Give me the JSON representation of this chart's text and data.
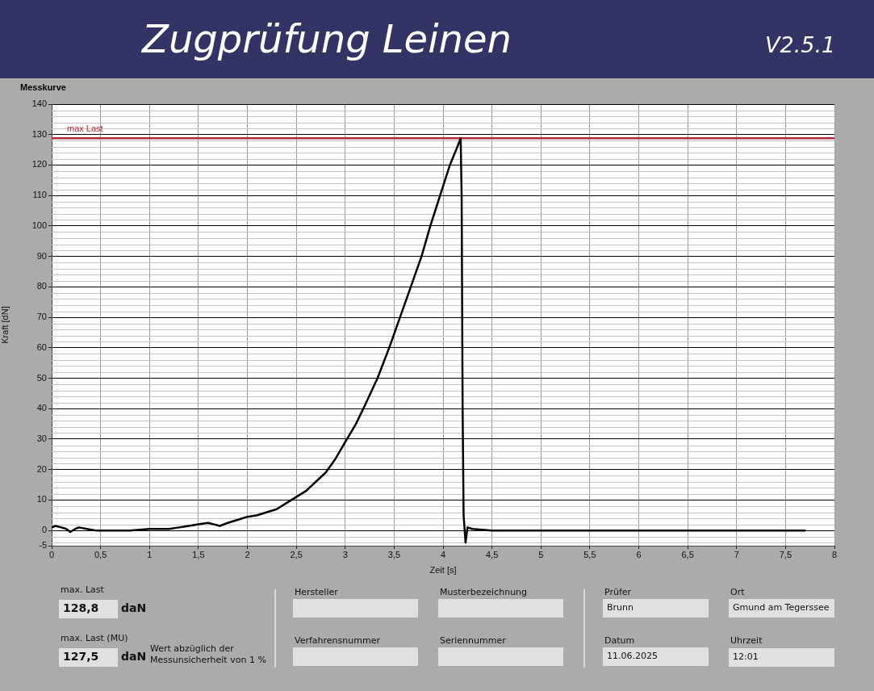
{
  "chart_data": {
    "type": "line",
    "title": "Zugprüfung Leinen",
    "subtitle": "Messkurve",
    "xlabel": "Zeit [s]",
    "ylabel": "Kraft [dN]",
    "x": [
      0,
      0.04,
      0.1,
      0.15,
      0.19,
      0.24,
      0.28,
      0.36,
      0.45,
      0.6,
      0.8,
      1.0,
      1.1,
      1.2,
      1.3,
      1.4,
      1.5,
      1.6,
      1.66,
      1.72,
      1.8,
      1.9,
      2.0,
      2.1,
      2.2,
      2.3,
      2.4,
      2.5,
      2.6,
      2.7,
      2.8,
      2.9,
      3.0,
      3.11,
      3.2,
      3.33,
      3.45,
      3.56,
      3.67,
      3.78,
      3.87,
      3.95,
      4.07,
      4.14,
      4.18,
      4.19,
      4.2,
      4.21,
      4.23,
      4.25,
      4.3,
      4.5,
      5,
      5.5,
      6,
      6.5,
      7,
      7.5,
      7.7
    ],
    "series": [
      {
        "color": "#000000",
        "values": [
          1,
          1.5,
          1,
          0.5,
          -0.5,
          0.5,
          1,
          0.5,
          0,
          0,
          0,
          0.5,
          0.5,
          0.5,
          1,
          1.5,
          2,
          2.5,
          2,
          1.5,
          2.5,
          3.5,
          4.5,
          5,
          6,
          7,
          9,
          11,
          13,
          16,
          19,
          23.5,
          29,
          35,
          41,
          50,
          60,
          70,
          80,
          90,
          100,
          108,
          120,
          125.5,
          128.8,
          110,
          40,
          5,
          -4,
          1,
          0.5,
          0,
          0,
          0,
          0,
          0,
          0,
          0,
          0
        ]
      }
    ],
    "xlim": [
      0,
      8
    ],
    "ylim": [
      -5,
      140
    ],
    "xticks": [
      0,
      {
        "value": 0.5,
        "label": "0,5"
      },
      1,
      {
        "value": 1.5,
        "label": "1,5"
      },
      2,
      {
        "value": 2.5,
        "label": "2,5"
      },
      3,
      {
        "value": 3.5,
        "label": "3,5"
      },
      4,
      {
        "value": 4.5,
        "label": "4,5"
      },
      5,
      {
        "value": 5.5,
        "label": "5,5"
      },
      6,
      {
        "value": 6.5,
        "label": "6,5"
      },
      7,
      {
        "value": 7.5,
        "label": "7,5"
      },
      8
    ],
    "yticks": [
      -5,
      0,
      10,
      20,
      30,
      40,
      50,
      60,
      70,
      80,
      90,
      100,
      110,
      120,
      130,
      140
    ],
    "ref_lines": [
      {
        "axis": "y",
        "value": 128.8,
        "label": "max Last",
        "color": "#b8283a"
      }
    ],
    "grid": true,
    "legend": false,
    "marker": "none",
    "line_style": "solid",
    "annotations": [
      "V2.5.1",
      "max. Last",
      "128,8",
      "daN",
      "max. Last (MU)",
      "127,5",
      "daN",
      "Wert abzüglich der Messunsicherheit von 1 %",
      "Hersteller",
      "Verfahrensnummer",
      "Musterbezeichnung",
      "Seriennummer",
      "Prüfer",
      "Brunn",
      "Datum",
      "11.06.2025",
      "Ort",
      "Gmund am Tegerssee",
      "Uhrzeit",
      "12:01"
    ]
  }
}
